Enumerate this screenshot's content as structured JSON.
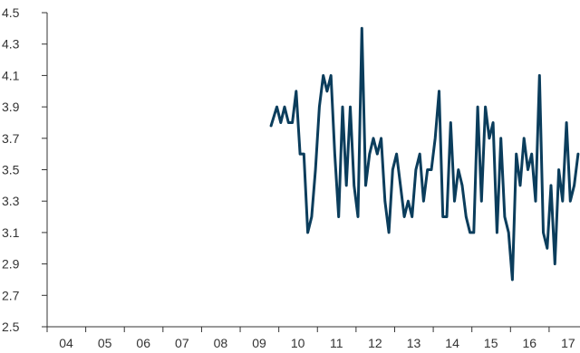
{
  "chart_data": {
    "type": "line",
    "title": "",
    "xlabel": "",
    "ylabel": "",
    "ylim": [
      2.5,
      4.5
    ],
    "xlim": [
      2004,
      2017.8
    ],
    "grid": false,
    "legend": "none",
    "y_ticks": [
      "2.5",
      "2.7",
      "2.9",
      "3.1",
      "3.3",
      "3.5",
      "3.7",
      "3.9",
      "4.1",
      "4.3",
      "4.5"
    ],
    "x_ticks": [
      {
        "label": "04",
        "year": 2004
      },
      {
        "label": "05",
        "year": 2005
      },
      {
        "label": "06",
        "year": 2006
      },
      {
        "label": "07",
        "year": 2007
      },
      {
        "label": "08",
        "year": 2008
      },
      {
        "label": "09",
        "year": 2009
      },
      {
        "label": "10",
        "year": 2010
      },
      {
        "label": "11",
        "year": 2011
      },
      {
        "label": "12",
        "year": 2012
      },
      {
        "label": "13",
        "year": 2013
      },
      {
        "label": "14",
        "year": 2014
      },
      {
        "label": "15",
        "year": 2015
      },
      {
        "label": "16",
        "year": 2016
      },
      {
        "label": "17",
        "year": 2017
      }
    ],
    "colors": {
      "line": "#0b3d5c",
      "axis": "#333333"
    },
    "series": [
      {
        "x": [
          2009.8,
          2009.95,
          2010.05,
          2010.15,
          2010.25,
          2010.35,
          2010.45,
          2010.55,
          2010.65,
          2010.75,
          2010.85,
          2010.95,
          2011.05,
          2011.15,
          2011.25,
          2011.35,
          2011.45,
          2011.55,
          2011.65,
          2011.75,
          2011.85,
          2011.95,
          2012.05,
          2012.15,
          2012.25,
          2012.35,
          2012.45,
          2012.55,
          2012.65,
          2012.75,
          2012.85,
          2012.95,
          2013.05,
          2013.15,
          2013.25,
          2013.35,
          2013.45,
          2013.55,
          2013.65,
          2013.75,
          2013.85,
          2013.95,
          2014.05,
          2014.15,
          2014.25,
          2014.35,
          2014.45,
          2014.55,
          2014.65,
          2014.75,
          2014.85,
          2014.95,
          2015.05,
          2015.15,
          2015.25,
          2015.35,
          2015.45,
          2015.55,
          2015.65,
          2015.75,
          2015.85,
          2015.95,
          2016.05,
          2016.15,
          2016.25,
          2016.35,
          2016.45,
          2016.55,
          2016.65,
          2016.75,
          2016.85,
          2016.95,
          2017.05,
          2017.15,
          2017.25,
          2017.35,
          2017.45,
          2017.55,
          2017.65,
          2017.75
        ],
        "y": [
          3.78,
          3.9,
          3.8,
          3.9,
          3.8,
          3.8,
          4.0,
          3.6,
          3.6,
          3.1,
          3.2,
          3.5,
          3.9,
          4.1,
          4.0,
          4.1,
          3.6,
          3.2,
          3.9,
          3.4,
          3.9,
          3.4,
          3.2,
          4.4,
          3.4,
          3.6,
          3.7,
          3.6,
          3.7,
          3.3,
          3.1,
          3.5,
          3.6,
          3.4,
          3.2,
          3.3,
          3.2,
          3.5,
          3.6,
          3.3,
          3.5,
          3.5,
          3.7,
          4.0,
          3.2,
          3.2,
          3.8,
          3.3,
          3.5,
          3.4,
          3.2,
          3.1,
          3.1,
          3.9,
          3.3,
          3.9,
          3.7,
          3.8,
          3.1,
          3.7,
          3.2,
          3.1,
          2.8,
          3.6,
          3.4,
          3.7,
          3.5,
          3.6,
          3.3,
          4.1,
          3.1,
          3.0,
          3.4,
          2.9,
          3.5,
          3.3,
          3.8,
          3.3,
          3.4,
          3.6
        ]
      }
    ]
  }
}
